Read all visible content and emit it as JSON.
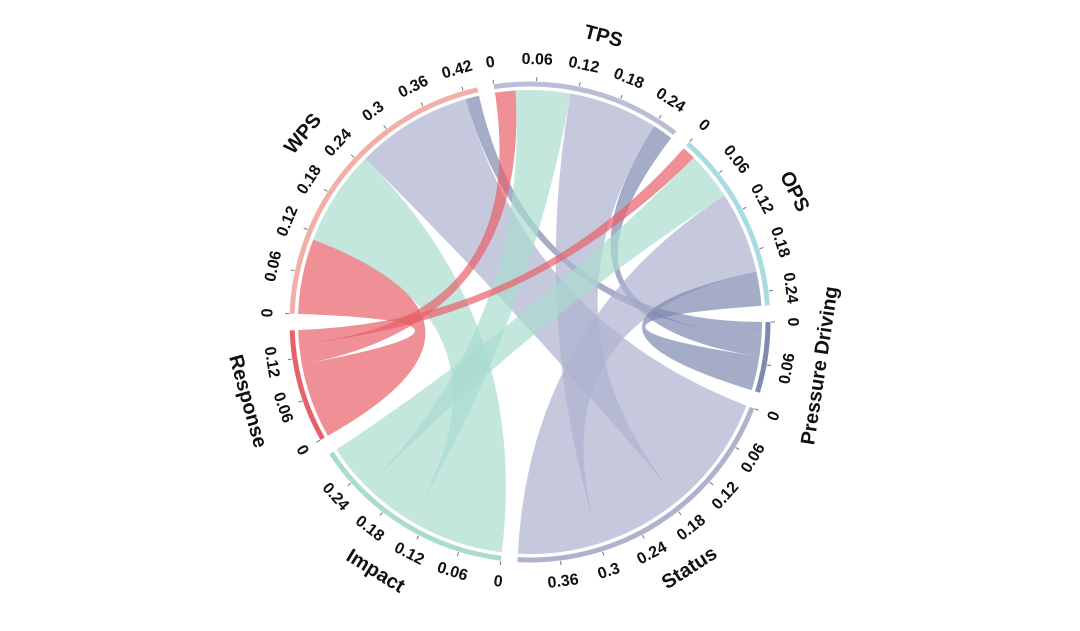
{
  "chart_data": {
    "type": "chord",
    "series": [
      {
        "name": "WPS",
        "color": "#f2aea8",
        "ticks": [
          0,
          0.06,
          0.12,
          0.18,
          0.24,
          0.3,
          0.36,
          0.42
        ],
        "values": [
          0.02,
          0.17,
          0.14,
          0.11
        ]
      },
      {
        "name": "TPS",
        "color": "#b9bdd6",
        "ticks": [
          0,
          0.06,
          0.12,
          0.18,
          0.24
        ],
        "values": [
          0.03,
          0.13,
          0.08,
          0.03
        ]
      },
      {
        "name": "OPS",
        "color": "#a9dbe3",
        "ticks": [
          0,
          0.06,
          0.12,
          0.18,
          0.24
        ],
        "values": [
          0.05,
          0.12,
          0.07,
          0.02
        ]
      }
    ],
    "targets": [
      {
        "name": "Pressure Driving",
        "color": "#7f89b1",
        "ticks": [
          0,
          0.06
        ]
      },
      {
        "name": "Status",
        "color": "#aeb2cf",
        "ticks": [
          0,
          0.06,
          0.12,
          0.18,
          0.24,
          0.3,
          0.36
        ]
      },
      {
        "name": "Impact",
        "color": "#a9dccf",
        "ticks": [
          0,
          0.06,
          0.12,
          0.18,
          0.24
        ]
      },
      {
        "name": "Response",
        "color": "#e8606a",
        "ticks": [
          0,
          0.06,
          0.12
        ]
      }
    ]
  }
}
